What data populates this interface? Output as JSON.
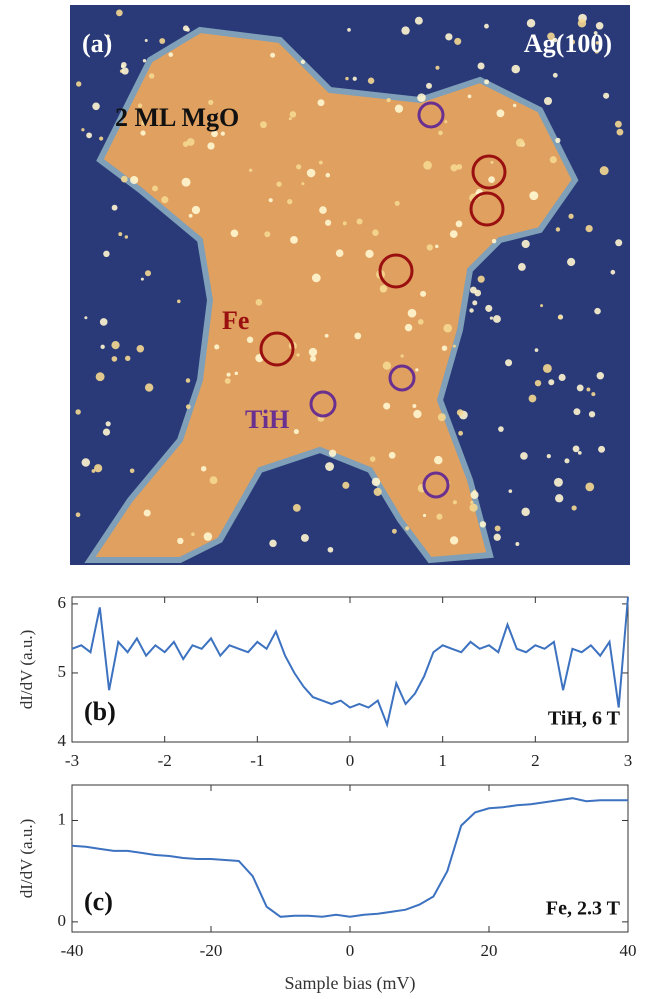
{
  "image_panel": {
    "label": "(a)",
    "substrate": "Ag(100)",
    "island": "2 ML MgO",
    "markers": [
      "Fe",
      "TiH"
    ]
  },
  "chart_data": [
    {
      "type": "line",
      "panel_label": "(b)",
      "annotation": "TiH, 6 T",
      "y_label": "dI/dV (a.u.)",
      "x": [
        -3.0,
        -2.9,
        -2.8,
        -2.7,
        -2.6,
        -2.5,
        -2.4,
        -2.3,
        -2.2,
        -2.1,
        -2.0,
        -1.9,
        -1.8,
        -1.7,
        -1.6,
        -1.5,
        -1.4,
        -1.3,
        -1.2,
        -1.1,
        -1.0,
        -0.9,
        -0.8,
        -0.7,
        -0.6,
        -0.5,
        -0.4,
        -0.3,
        -0.2,
        -0.1,
        0,
        0.1,
        0.2,
        0.3,
        0.4,
        0.5,
        0.6,
        0.7,
        0.8,
        0.9,
        1.0,
        1.1,
        1.2,
        1.3,
        1.4,
        1.5,
        1.6,
        1.7,
        1.8,
        1.9,
        2.0,
        2.1,
        2.2,
        2.3,
        2.4,
        2.5,
        2.6,
        2.7,
        2.8,
        2.9,
        3.0
      ],
      "series": [
        {
          "color": "#3d72c0",
          "values": [
            5.35,
            5.4,
            5.3,
            5.95,
            4.75,
            5.45,
            5.3,
            5.5,
            5.25,
            5.4,
            5.3,
            5.45,
            5.2,
            5.4,
            5.35,
            5.5,
            5.25,
            5.4,
            5.35,
            5.3,
            5.45,
            5.35,
            5.6,
            5.25,
            5.0,
            4.8,
            4.65,
            4.6,
            4.55,
            4.6,
            4.5,
            4.55,
            4.5,
            4.6,
            4.25,
            4.85,
            4.55,
            4.7,
            4.95,
            5.3,
            5.4,
            5.35,
            5.3,
            5.45,
            5.35,
            5.4,
            5.3,
            5.7,
            5.35,
            5.3,
            5.4,
            5.35,
            5.45,
            4.75,
            5.35,
            5.3,
            5.4,
            5.25,
            5.45,
            4.5,
            6.1
          ]
        }
      ],
      "xlim": [
        -3,
        3
      ],
      "xticks": [
        -3,
        -2,
        -1,
        0,
        1,
        2,
        3
      ],
      "ylim": [
        4,
        6.1
      ],
      "yticks": [
        4,
        5,
        6
      ]
    },
    {
      "type": "line",
      "panel_label": "(c)",
      "annotation": "Fe, 2.3 T",
      "y_label": "dI/dV (a.u.)",
      "x_label": "Sample bias (mV)",
      "x": [
        -40,
        -38,
        -36,
        -34,
        -32,
        -30,
        -28,
        -26,
        -24,
        -22,
        -20,
        -18,
        -16,
        -14,
        -12,
        -10,
        -8,
        -6,
        -4,
        -2,
        0,
        2,
        4,
        6,
        8,
        10,
        12,
        14,
        16,
        18,
        20,
        22,
        24,
        26,
        28,
        30,
        32,
        34,
        36,
        38,
        40
      ],
      "series": [
        {
          "color": "#3d72c0",
          "values": [
            0.75,
            0.74,
            0.72,
            0.7,
            0.7,
            0.68,
            0.66,
            0.65,
            0.63,
            0.62,
            0.62,
            0.61,
            0.6,
            0.45,
            0.15,
            0.05,
            0.06,
            0.06,
            0.05,
            0.07,
            0.05,
            0.07,
            0.08,
            0.1,
            0.12,
            0.17,
            0.25,
            0.5,
            0.95,
            1.08,
            1.12,
            1.13,
            1.15,
            1.16,
            1.18,
            1.2,
            1.22,
            1.19,
            1.2,
            1.2,
            1.2
          ]
        }
      ],
      "xlim": [
        -40,
        40
      ],
      "xticks": [
        -40,
        -20,
        0,
        20,
        40
      ],
      "ylim": [
        -0.1,
        1.35
      ],
      "yticks": [
        0,
        1
      ]
    }
  ]
}
